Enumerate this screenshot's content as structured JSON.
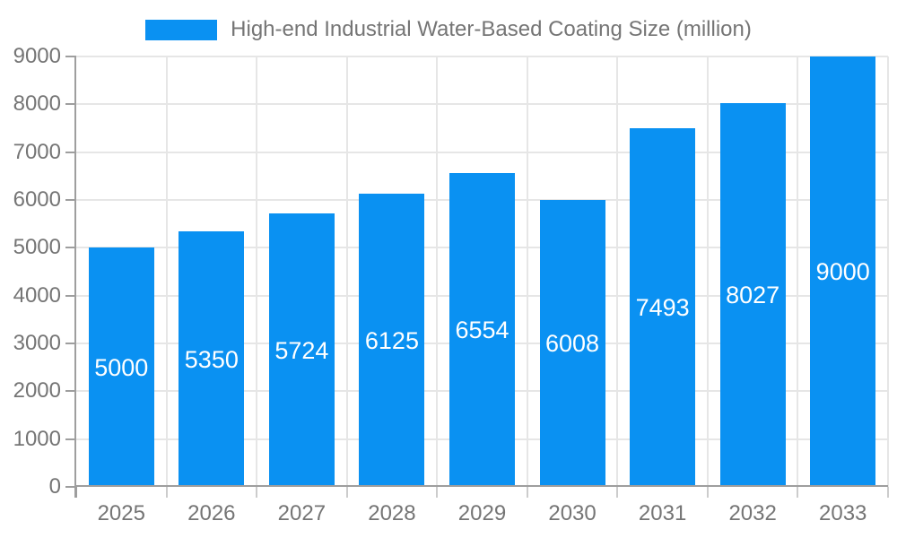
{
  "legend": {
    "label": "High-end Industrial Water-Based Coating Size (million)"
  },
  "chart_data": {
    "type": "bar",
    "title": "High-end Industrial Water-Based Coating Size (million)",
    "categories": [
      "2025",
      "2026",
      "2027",
      "2028",
      "2029",
      "2030",
      "2031",
      "2032",
      "2033"
    ],
    "values": [
      5000,
      5350,
      5724,
      6125,
      6554,
      6008,
      7493,
      8027,
      9000
    ],
    "xlabel": "",
    "ylabel": "",
    "ylim": [
      0,
      9000
    ],
    "ytick_step": 1000,
    "yticks": [
      0,
      1000,
      2000,
      3000,
      4000,
      5000,
      6000,
      7000,
      8000,
      9000
    ],
    "grid": "on",
    "legend_position": "top",
    "value_labels": "inside-center",
    "colors": {
      "bar": "#0A91F2",
      "value_label": "#FFFFFF",
      "axis_text": "#757575",
      "grid_line": "#E6E6E6",
      "axis_line": "#9E9E9E",
      "x_tick": "#CCCCCC"
    }
  }
}
